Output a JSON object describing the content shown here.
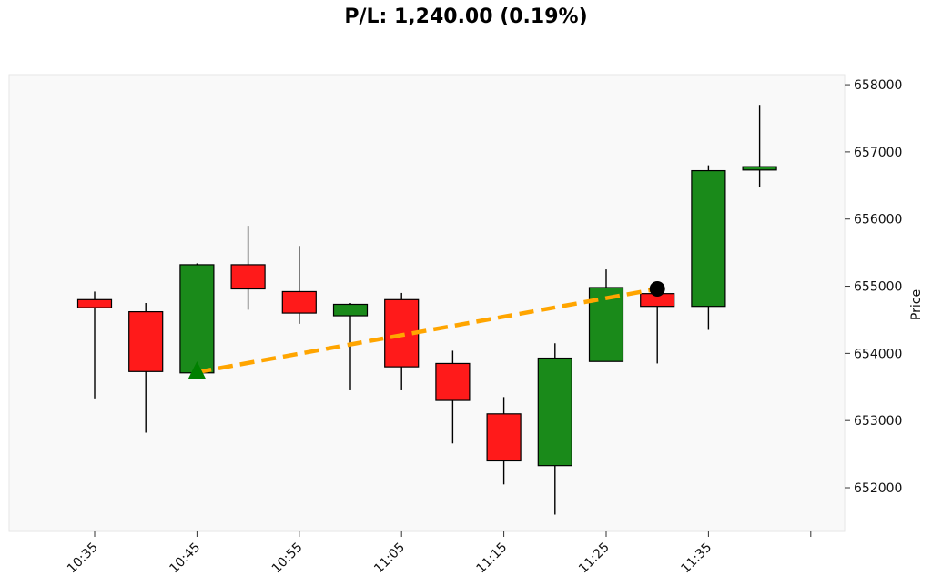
{
  "chart_data": {
    "type": "candlestick",
    "title": "P/L: 1,240.00 (0.19%)",
    "ylabel": "Price",
    "ylim": [
      651350,
      658150
    ],
    "yticks": [
      652000,
      653000,
      654000,
      655000,
      656000,
      657000,
      658000
    ],
    "ytick_labels": [
      "652000",
      "653000",
      "654000",
      "655000",
      "656000",
      "657000",
      "658000"
    ],
    "xticks": [
      "10:35",
      "10:45",
      "10:55",
      "11:05",
      "11:15",
      "11:25",
      "11:35"
    ],
    "x_times": [
      "10:35",
      "10:40",
      "10:45",
      "10:50",
      "10:55",
      "11:00",
      "11:05",
      "11:10",
      "11:15",
      "11:20",
      "11:25",
      "11:30",
      "11:35",
      "11:40"
    ],
    "candles": [
      {
        "time": "10:35",
        "open": 654800,
        "high": 654920,
        "low": 653330,
        "close": 654680,
        "direction": "down"
      },
      {
        "time": "10:40",
        "open": 654620,
        "high": 654750,
        "low": 652820,
        "close": 653730,
        "direction": "down"
      },
      {
        "time": "10:45",
        "open": 653710,
        "high": 655340,
        "low": 653700,
        "close": 655320,
        "direction": "up"
      },
      {
        "time": "10:50",
        "open": 655320,
        "high": 655900,
        "low": 654650,
        "close": 654960,
        "direction": "down"
      },
      {
        "time": "10:55",
        "open": 654920,
        "high": 655600,
        "low": 654440,
        "close": 654600,
        "direction": "down"
      },
      {
        "time": "11:00",
        "open": 654560,
        "high": 654750,
        "low": 653450,
        "close": 654730,
        "direction": "up"
      },
      {
        "time": "11:05",
        "open": 654800,
        "high": 654900,
        "low": 653450,
        "close": 653800,
        "direction": "down"
      },
      {
        "time": "11:10",
        "open": 653850,
        "high": 654040,
        "low": 652660,
        "close": 653300,
        "direction": "down"
      },
      {
        "time": "11:15",
        "open": 653100,
        "high": 653350,
        "low": 652050,
        "close": 652400,
        "direction": "down"
      },
      {
        "time": "11:20",
        "open": 652330,
        "high": 654150,
        "low": 651600,
        "close": 653930,
        "direction": "up"
      },
      {
        "time": "11:25",
        "open": 653880,
        "high": 655250,
        "low": 653880,
        "close": 654980,
        "direction": "up"
      },
      {
        "time": "11:30",
        "open": 654890,
        "high": 654890,
        "low": 653850,
        "close": 654700,
        "direction": "down"
      },
      {
        "time": "11:35",
        "open": 654700,
        "high": 656800,
        "low": 654350,
        "close": 656720,
        "direction": "up"
      },
      {
        "time": "11:40",
        "open": 656730,
        "high": 657700,
        "low": 656470,
        "close": 656780,
        "direction": "up"
      }
    ],
    "trade": {
      "entry": {
        "time": "10:45",
        "price": 653720,
        "marker": "triangle-up"
      },
      "exit": {
        "time": "11:30",
        "price": 654960,
        "marker": "circle"
      }
    },
    "colors": {
      "up": "#1a8a1a",
      "down": "#ff1a1a",
      "trade_line": "#ffa500",
      "entry_marker": "#008000",
      "exit_marker": "#000000",
      "plot_bg": "#f9f9f9"
    },
    "grid": false
  }
}
